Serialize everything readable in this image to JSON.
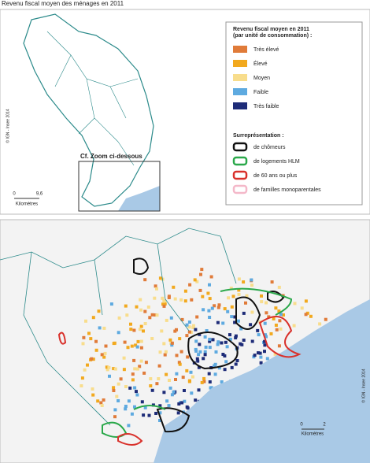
{
  "header": {
    "title": "Revenu fiscal moyen des ménages en 2011"
  },
  "overview": {
    "zoom_label": "Cf. Zoom ci-dessous",
    "copyright": "© IGN - Insee 2014",
    "scale": {
      "start": "0",
      "end": "9,6",
      "unit": "Kilomètres"
    }
  },
  "legend": {
    "title_line1": "Revenu fiscal moyen en 2011",
    "title_line2": "(par unité de consommation) :",
    "classes": [
      {
        "label": "Très élevé",
        "color": "#e07b39"
      },
      {
        "label": "Élevé",
        "color": "#f2a91e"
      },
      {
        "label": "Moyen",
        "color": "#f8dd8c"
      },
      {
        "label": "Faible",
        "color": "#5eaae0"
      },
      {
        "label": "Très faible",
        "color": "#1e2c78"
      }
    ],
    "overrep_title": "Surreprésentation :",
    "overrep": [
      {
        "label": "de chômeurs",
        "color": "#111111"
      },
      {
        "label": "de logements HLM",
        "color": "#2aa84a"
      },
      {
        "label": "de 60 ans ou plus",
        "color": "#d9312b"
      },
      {
        "label": "de familles monoparentales",
        "color": "#f4b8c9"
      }
    ]
  },
  "zoom": {
    "copyright": "© IGN - Insee 2014",
    "scale": {
      "start": "0",
      "end": "2",
      "unit": "Kilomètres"
    }
  }
}
